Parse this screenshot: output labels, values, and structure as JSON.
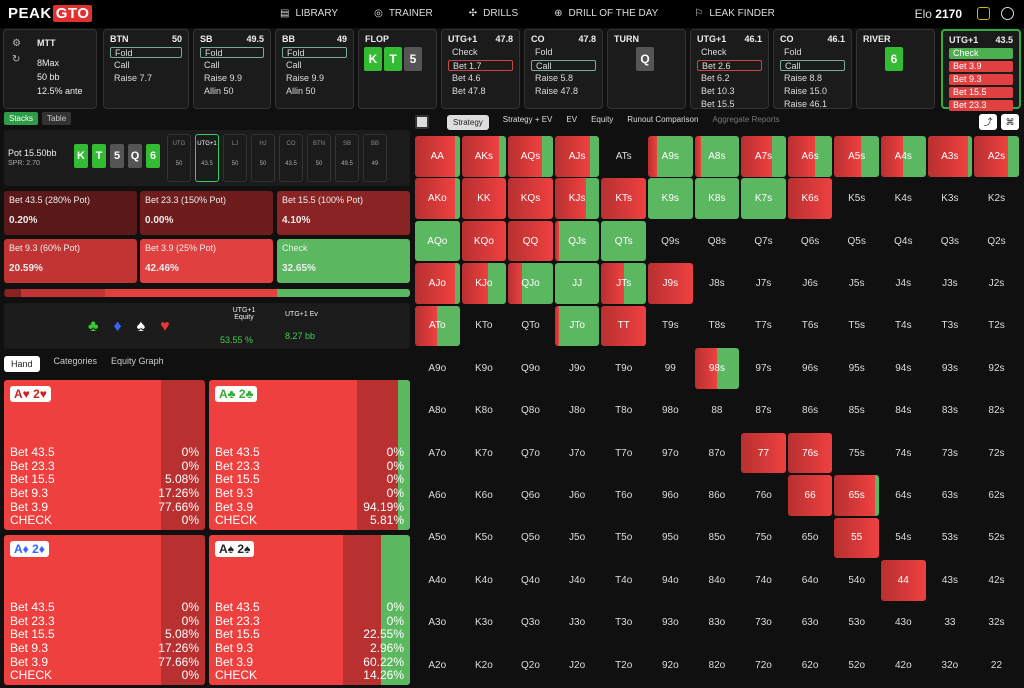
{
  "app": {
    "logo": "PEAK",
    "logo_tag": "GTO",
    "elo_label": "Elo",
    "elo_value": "2170"
  },
  "nav": [
    "LIBRARY",
    "TRAINER",
    "DRILLS",
    "DRILL OF THE DAY",
    "LEAK FINDER"
  ],
  "game": {
    "type": "MTT",
    "players": "8Max",
    "stack": "50 bb",
    "ante": "12.5% ante"
  },
  "history": [
    {
      "pos": "BTN",
      "stack": "50",
      "rows": [
        {
          "t": "Fold",
          "s": "sel"
        },
        {
          "t": "Call"
        },
        {
          "t": "Raise 7.7"
        }
      ]
    },
    {
      "pos": "SB",
      "stack": "49.5",
      "rows": [
        {
          "t": "Fold",
          "s": "sel"
        },
        {
          "t": "Call"
        },
        {
          "t": "Raise 9.9"
        },
        {
          "t": "Allin 50"
        }
      ]
    },
    {
      "pos": "BB",
      "stack": "49",
      "rows": [
        {
          "t": "Fold",
          "s": "sel"
        },
        {
          "t": "Call"
        },
        {
          "t": "Raise 9.9"
        },
        {
          "t": "Allin 50"
        }
      ]
    },
    {
      "pos": "FLOP",
      "stack": "",
      "rows": []
    },
    {
      "pos": "UTG+1",
      "stack": "47.8",
      "rows": [
        {
          "t": "Check"
        },
        {
          "t": "Bet 1.7",
          "s": "sr"
        },
        {
          "t": "Bet 4.6"
        },
        {
          "t": "Bet 47.8"
        }
      ]
    },
    {
      "pos": "CO",
      "stack": "47.8",
      "rows": [
        {
          "t": "Fold"
        },
        {
          "t": "Call",
          "s": "sel"
        },
        {
          "t": "Raise 5.8"
        },
        {
          "t": "Raise 47.8"
        }
      ]
    },
    {
      "pos": "TURN",
      "stack": "",
      "rows": []
    },
    {
      "pos": "UTG+1",
      "stack": "46.1",
      "rows": [
        {
          "t": "Check"
        },
        {
          "t": "Bet 2.6",
          "s": "sr"
        },
        {
          "t": "Bet 6.2"
        },
        {
          "t": "Bet 10.3"
        },
        {
          "t": "Bet 15.5"
        }
      ]
    },
    {
      "pos": "CO",
      "stack": "46.1",
      "rows": [
        {
          "t": "Fold"
        },
        {
          "t": "Call",
          "s": "sel"
        },
        {
          "t": "Raise 8.8"
        },
        {
          "t": "Raise 15.0"
        },
        {
          "t": "Raise 46.1"
        }
      ]
    },
    {
      "pos": "RIVER",
      "stack": "",
      "rows": []
    },
    {
      "pos": "UTG+1",
      "stack": "43.5",
      "rows": [
        {
          "t": "Check",
          "s": "grn"
        },
        {
          "t": "Bet 3.9",
          "s": "red"
        },
        {
          "t": "Bet 9.3",
          "s": "red"
        },
        {
          "t": "Bet 15.5",
          "s": "red"
        },
        {
          "t": "Bet 23.3",
          "s": "red"
        }
      ]
    }
  ],
  "board": {
    "flop": [
      "K",
      "T",
      "5"
    ],
    "turn": "Q",
    "river": "6"
  },
  "left_tabs": [
    "Stacks",
    "Table"
  ],
  "pot": {
    "label": "Pot",
    "value": "15.50bb",
    "spr": "SPR: 2.70"
  },
  "seats": [
    {
      "p": "UTG",
      "s": "50"
    },
    {
      "p": "UTG+1",
      "s": "43.5"
    },
    {
      "p": "LJ",
      "s": "50"
    },
    {
      "p": "HJ",
      "s": "50"
    },
    {
      "p": "CO",
      "s": "43.5"
    },
    {
      "p": "BTN",
      "s": "50"
    },
    {
      "p": "SB",
      "s": "49.5"
    },
    {
      "p": "BB",
      "s": "49"
    }
  ],
  "actions": [
    {
      "label": "Bet 43.5 (280% Pot)",
      "value": "0.20%",
      "color": "#5a1818"
    },
    {
      "label": "Bet 23.3 (150% Pot)",
      "value": "0.00%",
      "color": "#6e1c1c"
    },
    {
      "label": "Bet 15.5 (100% Pot)",
      "value": "4.10%",
      "color": "#8a2424"
    },
    {
      "label": "Bet 9.3 (60% Pot)",
      "value": "20.59%",
      "color": "#c03434"
    },
    {
      "label": "Bet 3.9 (25% Pot)",
      "value": "42.46%",
      "color": "#e04040"
    },
    {
      "label": "Check",
      "value": "32.65%",
      "color": "#5cb860"
    }
  ],
  "equity": {
    "eq_label": "UTG+1 Equity",
    "eq_value": "53.55 %",
    "ev_label": "UTG+1 Ev",
    "ev_value": "8.27 bb"
  },
  "hand_tabs": [
    "Hand",
    "Categories",
    "Equity Graph"
  ],
  "hands": [
    {
      "label": "A♥ 2♥",
      "vals": [
        "0%",
        "0%",
        "5.08%",
        "17.26%",
        "77.66%",
        "0%"
      ],
      "green": 0
    },
    {
      "label": "A♣ 2♣",
      "vals": [
        "0%",
        "0%",
        "0%",
        "0%",
        "94.19%",
        "5.81%"
      ],
      "green": 5.81
    },
    {
      "label": "A♦ 2♦",
      "vals": [
        "0%",
        "0%",
        "5.08%",
        "17.26%",
        "77.66%",
        "0%"
      ],
      "green": 0
    },
    {
      "label": "A♠ 2♠",
      "vals": [
        "0%",
        "0%",
        "22.55%",
        "2.96%",
        "60.22%",
        "14.26%"
      ],
      "green": 14.26
    }
  ],
  "hand_rows": [
    "Bet 43.5",
    "Bet 23.3",
    "Bet 15.5",
    "Bet 9.3",
    "Bet 3.9",
    "CHECK"
  ],
  "right_tabs": [
    "Strategy",
    "Strategy + EV",
    "EV",
    "Equity",
    "Runout Comparison",
    "Aggregate Reports"
  ],
  "grid": {
    "ranks": [
      "A",
      "K",
      "Q",
      "J",
      "T",
      "9",
      "8",
      "7",
      "6",
      "5",
      "4",
      "3",
      "2"
    ],
    "cells": {
      "AA": [
        0.9,
        0.1
      ],
      "AKs": [
        0.85,
        0.15
      ],
      "AQs": [
        0.75,
        0.25
      ],
      "AJs": [
        0.8,
        0.2
      ],
      "A9s": [
        0.2,
        0.8
      ],
      "A8s": [
        0.15,
        0.85
      ],
      "A7s": [
        0.7,
        0.3
      ],
      "A6s": [
        0.6,
        0.4
      ],
      "A5s": [
        0.6,
        0.4
      ],
      "A4s": [
        0.5,
        0.5
      ],
      "A3s": [
        0.9,
        0.1
      ],
      "A2s": [
        0.75,
        0.25
      ],
      "AKo": [
        0.9,
        0.1
      ],
      "KK": [
        1,
        0
      ],
      "KQs": [
        1,
        0
      ],
      "KJs": [
        0.7,
        0.3
      ],
      "KTs": [
        1,
        0
      ],
      "K9s": [
        0,
        1
      ],
      "K8s": [
        0,
        1
      ],
      "K7s": [
        0,
        1
      ],
      "K6s": [
        1,
        0
      ],
      "AQo": [
        0,
        1
      ],
      "KQo": [
        1,
        0
      ],
      "QQ": [
        1,
        0
      ],
      "QJs": [
        0.1,
        0.9
      ],
      "QTs": [
        0,
        1
      ],
      "AJo": [
        0.9,
        0.1
      ],
      "KJo": [
        0.6,
        0.4
      ],
      "QJo": [
        0.3,
        0.7
      ],
      "JJ": [
        0,
        1
      ],
      "JTs": [
        0.5,
        0.5
      ],
      "J9s": [
        1,
        0
      ],
      "ATo": [
        0.5,
        0.5
      ],
      "JTo": [
        0.1,
        0.9
      ],
      "TT": [
        1,
        0
      ],
      "98s": [
        0.5,
        0.5
      ],
      "77": [
        1,
        0
      ],
      "76s": [
        1,
        0
      ],
      "66": [
        1,
        0
      ],
      "65s": [
        0.9,
        0.1
      ],
      "55": [
        1,
        0
      ],
      "44": [
        1,
        0
      ]
    }
  }
}
